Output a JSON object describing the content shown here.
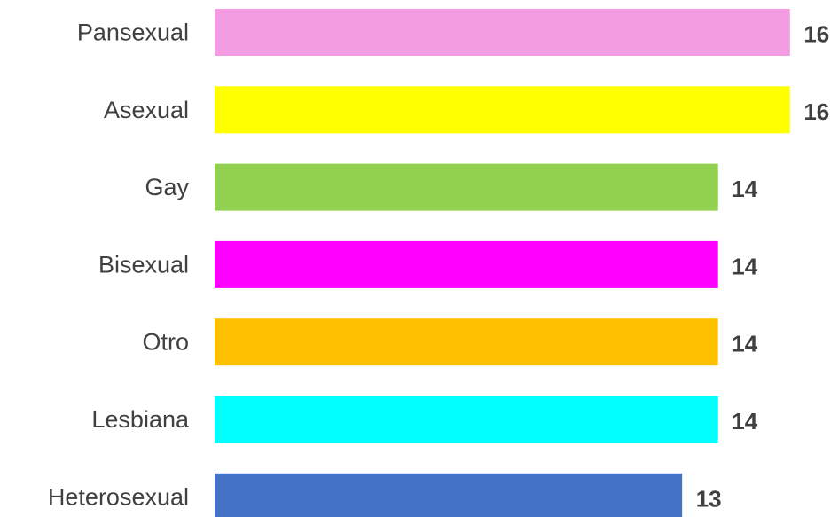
{
  "chart_data": {
    "type": "bar",
    "orientation": "horizontal",
    "categories": [
      "Pansexual",
      "Asexual",
      "Gay",
      "Bisexual",
      "Otro",
      "Lesbiana",
      "Heterosexual"
    ],
    "values": [
      16,
      16,
      14,
      14,
      14,
      14,
      13
    ],
    "colors": [
      "#F49CE1",
      "#FFFF00",
      "#92D050",
      "#FF00FF",
      "#FFC000",
      "#00FFFF",
      "#4472C4"
    ],
    "value_label_color": "#404040",
    "category_label_color": "#404040",
    "title": "",
    "xlabel": "",
    "ylabel": "",
    "grid": false,
    "legend": "none"
  }
}
